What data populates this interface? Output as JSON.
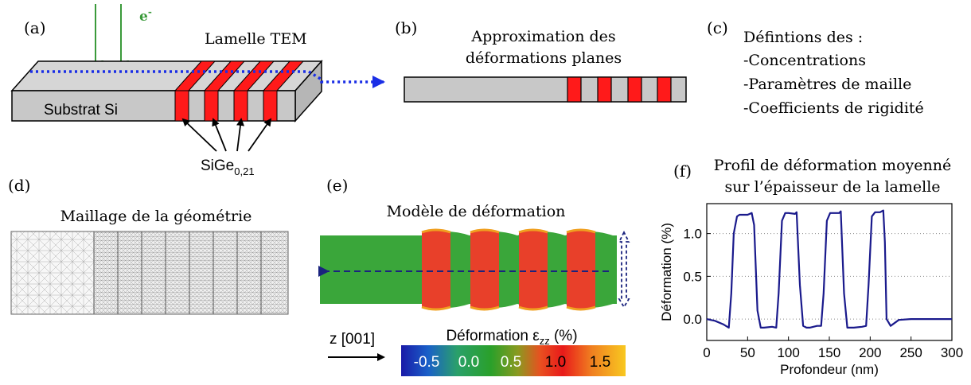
{
  "panels": {
    "a": {
      "tag": "(a)",
      "beam_label": "e",
      "beam_sup": "-",
      "lamella_label": "Lamelle TEM",
      "substrate_label": "Substrat Si",
      "sige_label": "SiGe",
      "sige_sub": "0,21"
    },
    "b": {
      "tag": "(b)",
      "title_line1": "Approximation des",
      "title_line2": "déformations planes"
    },
    "c": {
      "tag": "(c)",
      "lines": [
        "Défintions des :",
        "-Concentrations",
        "-Paramètres de maille",
        "-Coefficients de rigidité"
      ]
    },
    "d": {
      "tag": "(d)",
      "title": "Maillage de la géométrie"
    },
    "e": {
      "tag": "(e)",
      "title": "Modèle de déformation",
      "axis_label": "z [001]",
      "colorbar_title_main": "Déformation ε",
      "colorbar_title_sub": "zz",
      "colorbar_title_unit": " (%)",
      "colorbar_ticks": [
        "-0.5",
        "0.0",
        "0.5",
        "1.0",
        "1.5"
      ]
    },
    "f": {
      "tag": "(f)",
      "title_line1": "Profil de déformation moyenné",
      "title_line2": "sur l’épaisseur de la lamelle"
    }
  },
  "colors": {
    "beam": "#3a9a3a",
    "sige": "#ff1a1a",
    "si": "#c8c8c8",
    "dash_blue": "#1a2ee6",
    "curve": "#1a1a8c"
  },
  "chart_data": {
    "type": "line",
    "xlabel": "Profondeur (nm)",
    "ylabel": "Déformation (%)",
    "xlim": [
      0,
      300
    ],
    "ylim": [
      -0.25,
      1.35
    ],
    "xticks": [
      0,
      50,
      100,
      150,
      200,
      250,
      300
    ],
    "yticks": [
      0.0,
      0.5,
      1.0
    ],
    "ytick_labels": [
      "0.0",
      "0.5",
      "1.0"
    ],
    "grid": "horizontal-dotted",
    "x": [
      0,
      10,
      20,
      27,
      30,
      33,
      37,
      40,
      50,
      55,
      58,
      62,
      66,
      70,
      80,
      85,
      88,
      92,
      96,
      100,
      108,
      110,
      114,
      118,
      122,
      126,
      135,
      140,
      143,
      147,
      151,
      156,
      162,
      164,
      168,
      172,
      176,
      180,
      190,
      195,
      198,
      202,
      206,
      212,
      216,
      218,
      220,
      225,
      235,
      250,
      300
    ],
    "y": [
      0.0,
      -0.02,
      -0.06,
      -0.1,
      0.3,
      1.0,
      1.2,
      1.22,
      1.22,
      1.24,
      1.1,
      0.1,
      -0.1,
      -0.1,
      -0.09,
      -0.1,
      0.3,
      1.15,
      1.24,
      1.24,
      1.23,
      1.25,
      0.4,
      -0.08,
      -0.1,
      -0.1,
      -0.08,
      -0.08,
      0.3,
      1.15,
      1.24,
      1.24,
      1.24,
      1.26,
      0.3,
      -0.1,
      -0.1,
      -0.1,
      -0.09,
      -0.08,
      0.4,
      1.2,
      1.25,
      1.25,
      1.27,
      0.9,
      0.0,
      -0.08,
      -0.01,
      0.0,
      0.0
    ]
  }
}
